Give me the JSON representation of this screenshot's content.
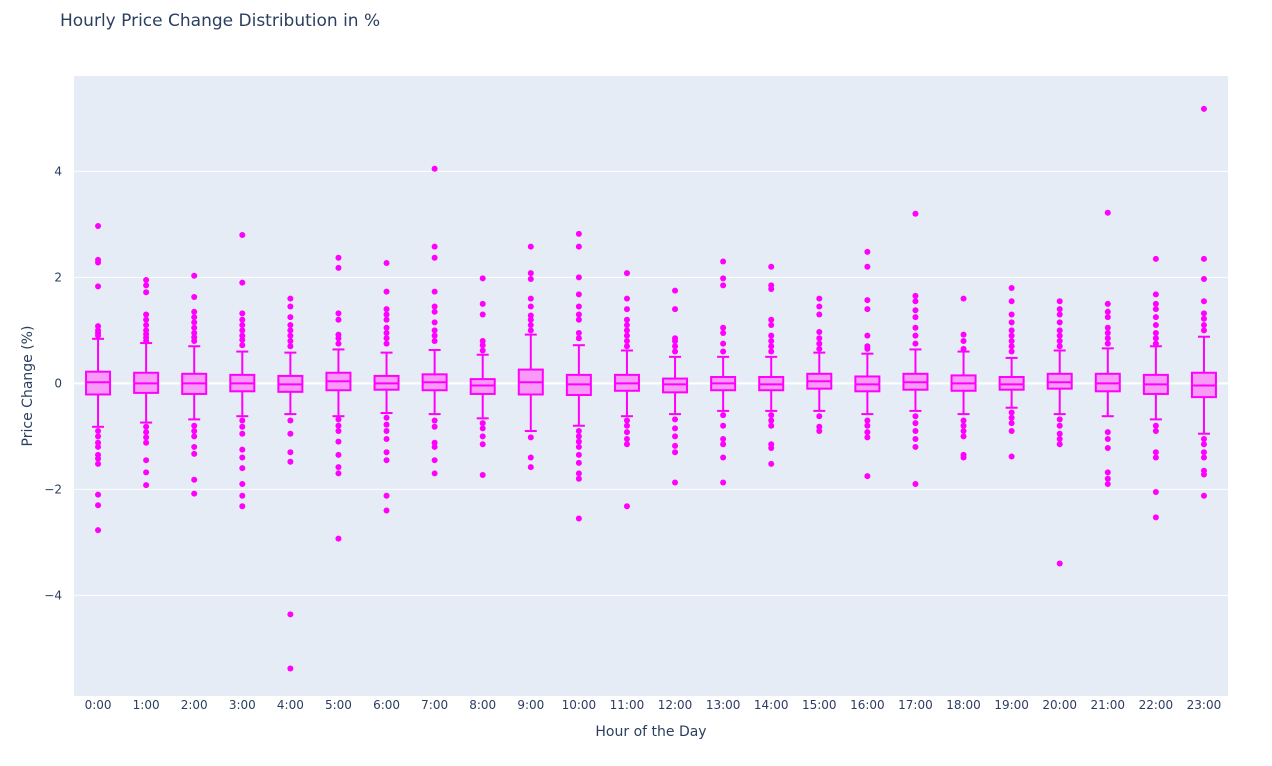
{
  "chart_data": {
    "type": "box",
    "title": "Hourly Price Change Distribution in %",
    "xlabel": "Hour of the Day",
    "ylabel": "Price Change (%)",
    "ylim": [
      -5.9,
      5.8
    ],
    "yticks": [
      -4,
      -2,
      0,
      2,
      4
    ],
    "categories": [
      "0:00",
      "1:00",
      "2:00",
      "3:00",
      "4:00",
      "5:00",
      "6:00",
      "7:00",
      "8:00",
      "9:00",
      "10:00",
      "11:00",
      "12:00",
      "13:00",
      "14:00",
      "15:00",
      "16:00",
      "17:00",
      "18:00",
      "19:00",
      "20:00",
      "21:00",
      "22:00",
      "23:00"
    ],
    "color": "#ff00ff",
    "fill_color": "#f99af9",
    "plot_bgcolor": "#e5ecf6",
    "boxes": [
      {
        "q1": -0.21,
        "median": 0.02,
        "q3": 0.22,
        "lower": -0.82,
        "upper": 0.84,
        "outliers": [
          2.97,
          2.33,
          2.28,
          1.83,
          1.08,
          1.0,
          0.95,
          0.9,
          -0.9,
          -1.0,
          -1.12,
          -1.2,
          -1.35,
          -1.42,
          -1.52,
          -2.1,
          -2.3,
          -2.77
        ]
      },
      {
        "q1": -0.18,
        "median": 0.0,
        "q3": 0.2,
        "lower": -0.74,
        "upper": 0.76,
        "outliers": [
          1.95,
          1.85,
          1.72,
          1.3,
          1.2,
          1.1,
          1.0,
          0.93,
          0.86,
          0.8,
          -0.82,
          -0.92,
          -1.02,
          -1.12,
          -1.45,
          -1.68,
          -1.92
        ]
      },
      {
        "q1": -0.2,
        "median": 0.0,
        "q3": 0.18,
        "lower": -0.68,
        "upper": 0.7,
        "outliers": [
          2.03,
          1.63,
          1.35,
          1.25,
          1.15,
          1.05,
          0.95,
          0.87,
          0.8,
          -0.8,
          -0.9,
          -1.0,
          -1.2,
          -1.33,
          -1.82,
          -2.08
        ]
      },
      {
        "q1": -0.15,
        "median": 0.0,
        "q3": 0.16,
        "lower": -0.62,
        "upper": 0.6,
        "outliers": [
          2.8,
          1.9,
          1.32,
          1.2,
          1.1,
          1.0,
          0.9,
          0.82,
          0.72,
          -0.7,
          -0.82,
          -0.95,
          -1.25,
          -1.4,
          -1.6,
          -1.9,
          -2.12,
          -2.32
        ]
      },
      {
        "q1": -0.16,
        "median": -0.02,
        "q3": 0.14,
        "lower": -0.58,
        "upper": 0.58,
        "outliers": [
          1.6,
          1.45,
          1.25,
          1.1,
          1.0,
          0.9,
          0.8,
          0.7,
          -0.7,
          -0.95,
          -1.3,
          -1.48,
          -4.36,
          -5.38
        ]
      },
      {
        "q1": -0.13,
        "median": 0.04,
        "q3": 0.2,
        "lower": -0.62,
        "upper": 0.64,
        "outliers": [
          2.37,
          2.18,
          1.32,
          1.2,
          0.92,
          0.85,
          0.75,
          -0.68,
          -0.8,
          -0.9,
          -1.1,
          -1.35,
          -1.58,
          -1.7,
          -2.93
        ]
      },
      {
        "q1": -0.12,
        "median": 0.0,
        "q3": 0.14,
        "lower": -0.56,
        "upper": 0.58,
        "outliers": [
          2.27,
          1.73,
          1.4,
          1.3,
          1.2,
          1.05,
          0.95,
          0.85,
          0.75,
          -0.65,
          -0.78,
          -0.9,
          -1.05,
          -1.3,
          -1.45,
          -2.12,
          -2.4
        ]
      },
      {
        "q1": -0.13,
        "median": 0.02,
        "q3": 0.17,
        "lower": -0.58,
        "upper": 0.63,
        "outliers": [
          4.05,
          2.58,
          2.37,
          1.73,
          1.45,
          1.35,
          1.15,
          1.0,
          0.9,
          0.8,
          -0.7,
          -0.82,
          -1.12,
          -1.2,
          -1.45,
          -1.7
        ]
      },
      {
        "q1": -0.2,
        "median": -0.04,
        "q3": 0.08,
        "lower": -0.66,
        "upper": 0.54,
        "outliers": [
          1.98,
          1.5,
          1.3,
          0.8,
          0.72,
          0.62,
          -0.75,
          -0.85,
          -1.0,
          -1.15,
          -1.73
        ]
      },
      {
        "q1": -0.21,
        "median": 0.02,
        "q3": 0.26,
        "lower": -0.9,
        "upper": 0.92,
        "outliers": [
          2.58,
          2.08,
          1.97,
          1.6,
          1.45,
          1.28,
          1.2,
          1.1,
          1.0,
          -1.02,
          -1.4,
          -1.58
        ]
      },
      {
        "q1": -0.22,
        "median": -0.02,
        "q3": 0.16,
        "lower": -0.8,
        "upper": 0.72,
        "outliers": [
          2.82,
          2.58,
          2.0,
          1.68,
          1.45,
          1.3,
          1.2,
          0.95,
          0.85,
          -0.9,
          -1.0,
          -1.1,
          -1.2,
          -1.35,
          -1.5,
          -1.7,
          -1.8,
          -2.55
        ]
      },
      {
        "q1": -0.14,
        "median": 0.0,
        "q3": 0.16,
        "lower": -0.62,
        "upper": 0.62,
        "outliers": [
          2.08,
          1.6,
          1.4,
          1.2,
          1.1,
          1.0,
          0.9,
          0.8,
          0.7,
          -0.7,
          -0.8,
          -0.92,
          -1.05,
          -1.15,
          -2.32
        ]
      },
      {
        "q1": -0.17,
        "median": -0.02,
        "q3": 0.09,
        "lower": -0.58,
        "upper": 0.5,
        "outliers": [
          1.75,
          1.4,
          0.85,
          0.8,
          0.7,
          0.6,
          -0.68,
          -0.85,
          -1.0,
          -1.18,
          -1.3,
          -1.87
        ]
      },
      {
        "q1": -0.13,
        "median": 0.0,
        "q3": 0.12,
        "lower": -0.52,
        "upper": 0.5,
        "outliers": [
          2.3,
          1.98,
          1.85,
          1.05,
          0.95,
          0.75,
          0.6,
          -0.6,
          -0.8,
          -1.05,
          -1.15,
          -1.4,
          -1.87
        ]
      },
      {
        "q1": -0.13,
        "median": -0.02,
        "q3": 0.12,
        "lower": -0.52,
        "upper": 0.5,
        "outliers": [
          2.2,
          1.85,
          1.78,
          1.2,
          1.1,
          0.9,
          0.8,
          0.7,
          0.6,
          -0.6,
          -0.7,
          -0.8,
          -1.15,
          -1.22,
          -1.52
        ]
      },
      {
        "q1": -0.1,
        "median": 0.04,
        "q3": 0.18,
        "lower": -0.52,
        "upper": 0.58,
        "outliers": [
          1.6,
          1.45,
          1.3,
          0.97,
          0.85,
          0.75,
          0.65,
          -0.62,
          -0.82,
          -0.9
        ]
      },
      {
        "q1": -0.15,
        "median": -0.02,
        "q3": 0.13,
        "lower": -0.58,
        "upper": 0.56,
        "outliers": [
          2.48,
          2.2,
          1.57,
          1.4,
          0.9,
          0.7,
          0.65,
          -0.7,
          -0.8,
          -0.92,
          -1.02,
          -1.75
        ]
      },
      {
        "q1": -0.12,
        "median": 0.02,
        "q3": 0.18,
        "lower": -0.52,
        "upper": 0.64,
        "outliers": [
          3.2,
          1.65,
          1.55,
          1.38,
          1.25,
          1.05,
          0.9,
          0.75,
          -0.62,
          -0.75,
          -0.9,
          -1.05,
          -1.2,
          -1.9
        ]
      },
      {
        "q1": -0.14,
        "median": 0.0,
        "q3": 0.15,
        "lower": -0.58,
        "upper": 0.6,
        "outliers": [
          1.6,
          0.92,
          0.8,
          0.65,
          -0.7,
          -0.8,
          -0.9,
          -1.0,
          -1.35,
          -1.4
        ]
      },
      {
        "q1": -0.12,
        "median": -0.02,
        "q3": 0.12,
        "lower": -0.46,
        "upper": 0.48,
        "outliers": [
          1.8,
          1.55,
          1.3,
          1.15,
          1.0,
          0.9,
          0.8,
          0.7,
          0.6,
          -0.55,
          -0.65,
          -0.75,
          -0.9,
          -1.38
        ]
      },
      {
        "q1": -0.1,
        "median": 0.02,
        "q3": 0.18,
        "lower": -0.58,
        "upper": 0.62,
        "outliers": [
          1.55,
          1.4,
          1.3,
          1.15,
          1.0,
          0.9,
          0.8,
          0.7,
          -0.68,
          -0.8,
          -0.95,
          -1.05,
          -1.15,
          -3.4
        ]
      },
      {
        "q1": -0.15,
        "median": 0.0,
        "q3": 0.18,
        "lower": -0.62,
        "upper": 0.66,
        "outliers": [
          3.22,
          1.5,
          1.35,
          1.25,
          1.05,
          0.95,
          0.85,
          0.75,
          -0.92,
          -1.05,
          -1.22,
          -1.68,
          -1.8,
          -1.9
        ]
      },
      {
        "q1": -0.2,
        "median": -0.02,
        "q3": 0.16,
        "lower": -0.68,
        "upper": 0.7,
        "outliers": [
          2.35,
          1.68,
          1.5,
          1.4,
          1.25,
          1.1,
          0.95,
          0.85,
          0.75,
          -0.8,
          -0.9,
          -1.3,
          -1.4,
          -2.05,
          -2.53
        ]
      },
      {
        "q1": -0.26,
        "median": -0.04,
        "q3": 0.2,
        "lower": -0.95,
        "upper": 0.88,
        "outliers": [
          5.18,
          2.35,
          1.97,
          1.55,
          1.32,
          1.22,
          1.1,
          1.0,
          -1.05,
          -1.15,
          -1.3,
          -1.4,
          -1.65,
          -1.72,
          -2.12
        ]
      }
    ]
  }
}
